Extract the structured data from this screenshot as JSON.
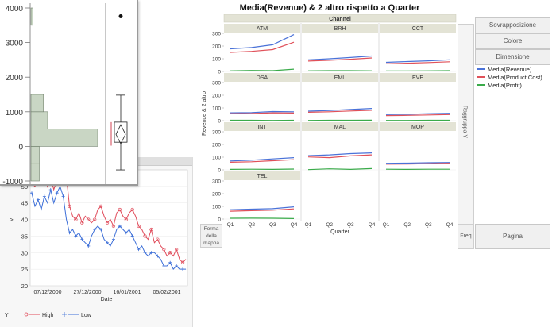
{
  "graph_builder": {
    "title": "Media(Revenue) & 2 altro rispetto a Quarter",
    "ylabel": "Revenue & 2 altro",
    "xlabel": "Quarter",
    "group_label": "Channel",
    "panel_names": [
      "ATM",
      "BRH",
      "CCT",
      "DSA",
      "EML",
      "EVE",
      "INT",
      "MAL",
      "MOP",
      "TEL"
    ],
    "x_ticks": [
      "Q1",
      "Q2",
      "Q3",
      "Q4"
    ],
    "y_ticks": [
      "0",
      "100",
      "200",
      "300"
    ],
    "zones": {
      "overlay": "Sovrapposizione",
      "color": "Colore",
      "size": "Dimensione",
      "wrap": "Raggruppa Y",
      "map": "Forma della mappa",
      "freq": "Freq",
      "page": "Pagina"
    },
    "legend": [
      {
        "label": "Media(Revenue)",
        "color": "#4a72d8"
      },
      {
        "label": "Media(Product Cost)",
        "color": "#e0515a"
      },
      {
        "label": "Media(Profit)",
        "color": "#3aab4a"
      }
    ]
  },
  "distribution": {
    "y_ticks": [
      "4000",
      "3000",
      "2000",
      "1000",
      "0",
      "-1000"
    ]
  },
  "timeseries": {
    "y_ticks": [
      "50",
      "45",
      "40",
      "35",
      "30",
      "25",
      "20"
    ],
    "x_ticks": [
      "07/12/2000",
      "27/12/2000",
      "16/01/2001",
      "05/02/2001"
    ],
    "xlabel": "Date",
    "ylabel": ">",
    "legend_y": "Y",
    "legend": [
      {
        "label": "High",
        "color": "#e04b5a"
      },
      {
        "label": "Low",
        "color": "#3d6fd8"
      }
    ]
  },
  "chart_data": [
    {
      "type": "line",
      "title": "Media(Revenue) & 2 altro rispetto a Quarter",
      "xlabel": "Quarter",
      "ylabel": "Revenue & 2 altro",
      "x": [
        "Q1",
        "Q2",
        "Q3",
        "Q4"
      ],
      "ylim": [
        0,
        300
      ],
      "panels": [
        {
          "name": "ATM",
          "revenue": [
            178,
            188,
            210,
            290
          ],
          "product_cost": [
            150,
            158,
            172,
            230
          ],
          "profit": [
            5,
            8,
            6,
            18
          ]
        },
        {
          "name": "BRH",
          "revenue": [
            92,
            100,
            110,
            122
          ],
          "product_cost": [
            82,
            88,
            96,
            106
          ],
          "profit": [
            5,
            6,
            6,
            5
          ]
        },
        {
          "name": "CCT",
          "revenue": [
            72,
            78,
            84,
            92
          ],
          "product_cost": [
            60,
            65,
            70,
            76
          ],
          "profit": [
            4,
            4,
            5,
            6
          ]
        },
        {
          "name": "DSA",
          "revenue": [
            62,
            64,
            72,
            70
          ],
          "product_cost": [
            55,
            56,
            62,
            60
          ],
          "profit": [
            3,
            3,
            2,
            3
          ]
        },
        {
          "name": "EML",
          "revenue": [
            75,
            80,
            88,
            96
          ],
          "product_cost": [
            66,
            70,
            76,
            82
          ],
          "profit": [
            2,
            3,
            3,
            4
          ]
        },
        {
          "name": "EVE",
          "revenue": [
            48,
            50,
            55,
            58
          ],
          "product_cost": [
            40,
            42,
            45,
            48
          ],
          "profit": [
            2,
            2,
            3,
            3
          ]
        },
        {
          "name": "INT",
          "revenue": [
            70,
            76,
            86,
            96
          ],
          "product_cost": [
            60,
            64,
            72,
            80
          ],
          "profit": [
            4,
            5,
            4,
            6
          ]
        },
        {
          "name": "MAL",
          "revenue": [
            112,
            118,
            128,
            134
          ],
          "product_cost": [
            102,
            96,
            110,
            118
          ],
          "profit": [
            2,
            8,
            4,
            10
          ]
        },
        {
          "name": "MOP",
          "revenue": [
            52,
            53,
            56,
            58
          ],
          "product_cost": [
            45,
            46,
            49,
            52
          ],
          "profit": [
            5,
            4,
            5,
            5
          ]
        },
        {
          "name": "TEL",
          "revenue": [
            74,
            78,
            82,
            96
          ],
          "product_cost": [
            62,
            66,
            70,
            80
          ],
          "profit": [
            6,
            7,
            6,
            4
          ]
        }
      ]
    },
    {
      "type": "bar",
      "subtype": "histogram",
      "orientation": "horizontal",
      "bins": [
        "-1000 to -500",
        "-500 to 0",
        "0 to 500",
        "500 to 1000",
        "1000 to 1500",
        "3500 to 4000"
      ],
      "counts": [
        4,
        4,
        32,
        8,
        6,
        1
      ],
      "ylim": [
        -1000,
        4000
      ],
      "boxplot": {
        "min": -680,
        "q1": 120,
        "median": 270,
        "q3": 700,
        "max": 1480,
        "outlier": 3760
      }
    },
    {
      "type": "line",
      "xlabel": "Date",
      "ylabel": ">",
      "ylim": [
        20,
        55
      ],
      "series": [
        {
          "name": "High",
          "color": "#e04b5a",
          "values": [
            51,
            50,
            53,
            51,
            54,
            50,
            53,
            49,
            52,
            54,
            51,
            53,
            44,
            41,
            40,
            42,
            39,
            41,
            40,
            39,
            40,
            43,
            44,
            41,
            39,
            40,
            38,
            42,
            43,
            41,
            40,
            42,
            43,
            41,
            38,
            37,
            35,
            34,
            37,
            33,
            34,
            32,
            31,
            29,
            30,
            29,
            31,
            28,
            27,
            28
          ]
        },
        {
          "name": "Low",
          "color": "#3d6fd8",
          "values": [
            48,
            44,
            46,
            43,
            47,
            45,
            49,
            45,
            48,
            50,
            47,
            40,
            36,
            37,
            35,
            36,
            34,
            33,
            32,
            35,
            37,
            38,
            37,
            34,
            33,
            32,
            34,
            37,
            38,
            37,
            36,
            37,
            35,
            33,
            31,
            32,
            30,
            29,
            30,
            30,
            29,
            28,
            26,
            26,
            27,
            25,
            26,
            25,
            25,
            25
          ]
        }
      ]
    }
  ]
}
